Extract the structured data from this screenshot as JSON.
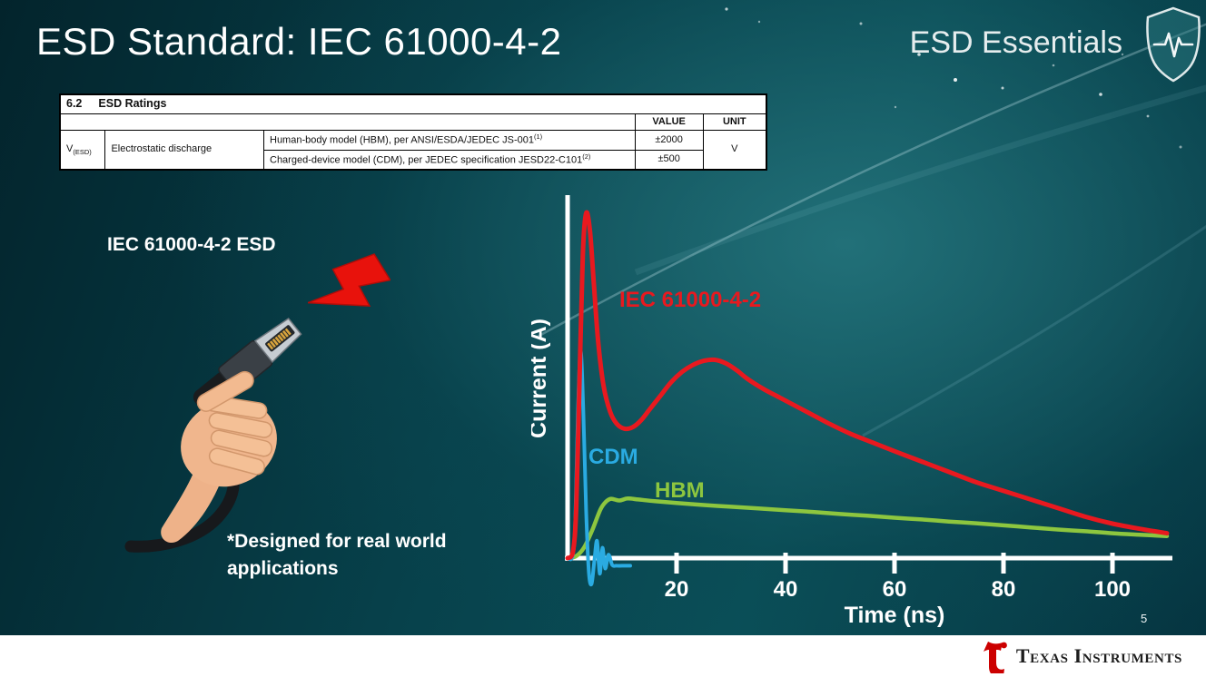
{
  "slide": {
    "title": "ESD Standard: IEC 61000-4-2",
    "brand": "ESD Essentials",
    "page_number": "5",
    "footer_logo": "Texas Instruments"
  },
  "colors": {
    "ti_red": "#cc0000",
    "slide_teal": "#0a4a54"
  },
  "ratings_table": {
    "section": "6.2",
    "section_title": "ESD Ratings",
    "col_value": "VALUE",
    "col_unit": "UNIT",
    "param_symbol": "V",
    "param_symbol_sub": "(ESD)",
    "param_name": "Electrostatic discharge",
    "rows": [
      {
        "desc": "Human-body model (HBM), per ANSI/ESDA/JEDEC JS-001",
        "sup": "(1)",
        "value": "±2000"
      },
      {
        "desc": "Charged-device model (CDM), per JEDEC specification JESD22-C101",
        "sup": "(2)",
        "value": "±500"
      }
    ],
    "unit": "V"
  },
  "illustration": {
    "label": "IEC 61000-4-2 ESD",
    "note_line1": "*Designed for real world",
    "note_line2": "applications"
  },
  "chart_data": {
    "type": "line",
    "title": "",
    "xlabel": "Time (ns)",
    "ylabel": "Current (A)",
    "x_ticks": [
      20,
      40,
      60,
      80,
      100
    ],
    "xlim": [
      0,
      110
    ],
    "ylim": [
      -0.08,
      1.05
    ],
    "y_axis_ticks": "none (qualitative current axis)",
    "legend_position": "inline-labels",
    "grid": false,
    "series": [
      {
        "name": "IEC 61000-4-2",
        "color": "#e8191f",
        "points": [
          [
            0,
            0
          ],
          [
            1,
            0.02
          ],
          [
            1.6,
            0.15
          ],
          [
            2.2,
            0.52
          ],
          [
            2.8,
            0.88
          ],
          [
            3.4,
            1.0
          ],
          [
            4.1,
            0.95
          ],
          [
            4.8,
            0.8
          ],
          [
            5.6,
            0.63
          ],
          [
            6.6,
            0.5
          ],
          [
            7.8,
            0.425
          ],
          [
            9,
            0.39
          ],
          [
            10.5,
            0.375
          ],
          [
            12,
            0.38
          ],
          [
            13.5,
            0.4
          ],
          [
            15,
            0.43
          ],
          [
            17,
            0.47
          ],
          [
            19,
            0.51
          ],
          [
            21,
            0.54
          ],
          [
            23,
            0.56
          ],
          [
            25,
            0.572
          ],
          [
            27,
            0.575
          ],
          [
            29,
            0.565
          ],
          [
            31,
            0.545
          ],
          [
            33,
            0.52
          ],
          [
            36,
            0.49
          ],
          [
            39,
            0.465
          ],
          [
            42,
            0.44
          ],
          [
            45,
            0.415
          ],
          [
            48,
            0.39
          ],
          [
            52,
            0.36
          ],
          [
            56,
            0.335
          ],
          [
            60,
            0.31
          ],
          [
            65,
            0.28
          ],
          [
            70,
            0.25
          ],
          [
            75,
            0.22
          ],
          [
            80,
            0.195
          ],
          [
            85,
            0.17
          ],
          [
            90,
            0.145
          ],
          [
            95,
            0.12
          ],
          [
            100,
            0.1
          ],
          [
            105,
            0.085
          ],
          [
            110,
            0.072
          ]
        ]
      },
      {
        "name": "CDM",
        "color": "#2aabe2",
        "points": [
          [
            0,
            0
          ],
          [
            0.9,
            0.005
          ],
          [
            1.4,
            0.1
          ],
          [
            1.9,
            0.42
          ],
          [
            2.4,
            0.6
          ],
          [
            2.9,
            0.42
          ],
          [
            3.4,
            0.14
          ],
          [
            3.9,
            -0.04
          ],
          [
            4.4,
            -0.075
          ],
          [
            4.9,
            -0.01
          ],
          [
            5.4,
            0.05
          ],
          [
            5.9,
            -0.045
          ],
          [
            6.4,
            0.03
          ],
          [
            6.9,
            -0.03
          ],
          [
            7.5,
            0.01
          ],
          [
            8.2,
            -0.02
          ],
          [
            9,
            -0.022
          ],
          [
            10.5,
            -0.022
          ],
          [
            11.5,
            -0.022
          ]
        ]
      },
      {
        "name": "HBM",
        "color": "#8dc63f",
        "points": [
          [
            0,
            0
          ],
          [
            1.5,
            0.005
          ],
          [
            3,
            0.03
          ],
          [
            4.5,
            0.08
          ],
          [
            6,
            0.14
          ],
          [
            7,
            0.163
          ],
          [
            8,
            0.172
          ],
          [
            9.5,
            0.167
          ],
          [
            11,
            0.173
          ],
          [
            13,
            0.17
          ],
          [
            16,
            0.165
          ],
          [
            20,
            0.16
          ],
          [
            25,
            0.154
          ],
          [
            30,
            0.149
          ],
          [
            35,
            0.144
          ],
          [
            40,
            0.139
          ],
          [
            45,
            0.134
          ],
          [
            50,
            0.128
          ],
          [
            55,
            0.123
          ],
          [
            60,
            0.117
          ],
          [
            65,
            0.112
          ],
          [
            70,
            0.106
          ],
          [
            75,
            0.101
          ],
          [
            80,
            0.095
          ],
          [
            85,
            0.089
          ],
          [
            90,
            0.083
          ],
          [
            95,
            0.078
          ],
          [
            100,
            0.072
          ],
          [
            105,
            0.068
          ],
          [
            110,
            0.064
          ]
        ]
      }
    ]
  }
}
